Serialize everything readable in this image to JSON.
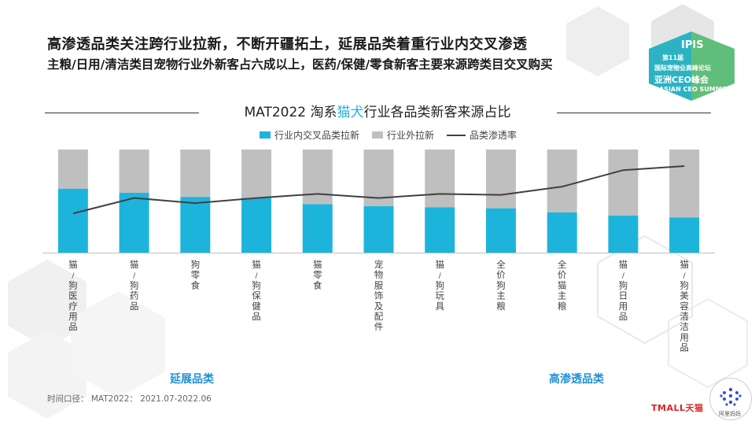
{
  "headline": "高渗透品类关注跨行业拉新，不断开疆拓土，延展品类着重行业内交叉渗透",
  "subline": "主粮/日用/清洁类目宠物行业外新客占六成以上，医药/保健/零食新客主要来源跨类目交叉购买",
  "logo": {
    "line1": "IPIS",
    "line2": "第11届",
    "line3": "国际宠物业高峰论坛",
    "line4": "亚洲CEO峰会",
    "line5": "ASIAN CEO SUMMIT"
  },
  "chart_title": {
    "prefix": "MAT2022 淘系",
    "highlight": "猫犬",
    "suffix": "行业各品类新客来源占比"
  },
  "chart_data": {
    "type": "bar",
    "stacked": true,
    "categories": [
      "猫/狗医疗用品",
      "猫/狗药品",
      "狗零食",
      "猫/狗保健品",
      "猫零食",
      "宠物服饰及配件",
      "猫/狗玩具",
      "全价狗主粮",
      "全价猫主粮",
      "猫/狗日用品",
      "猫/狗美容清洁用品"
    ],
    "series": [
      {
        "name": "行业内交叉品类拉新",
        "color": "#1db4dc",
        "values": [
          62,
          58,
          54,
          53,
          47,
          45,
          44,
          43,
          39,
          36,
          34
        ]
      },
      {
        "name": "行业外拉新",
        "color": "#bfbfbf",
        "values": [
          38,
          42,
          46,
          47,
          53,
          55,
          56,
          57,
          61,
          64,
          66
        ]
      },
      {
        "name": "品类渗透率",
        "color": "#404040",
        "type": "line",
        "values": [
          38,
          53,
          48,
          53,
          57,
          53,
          57,
          56,
          64,
          80,
          84
        ]
      }
    ],
    "ylim": [
      0,
      100
    ],
    "legend_position": "top"
  },
  "groups": {
    "left": "延展品类",
    "right": "高渗透品类"
  },
  "footnote": "时间口径：    MAT2022：  2021.07-2022.06",
  "brand": {
    "tmall": "TMALL天猫",
    "alimama": "阿里妈妈"
  }
}
